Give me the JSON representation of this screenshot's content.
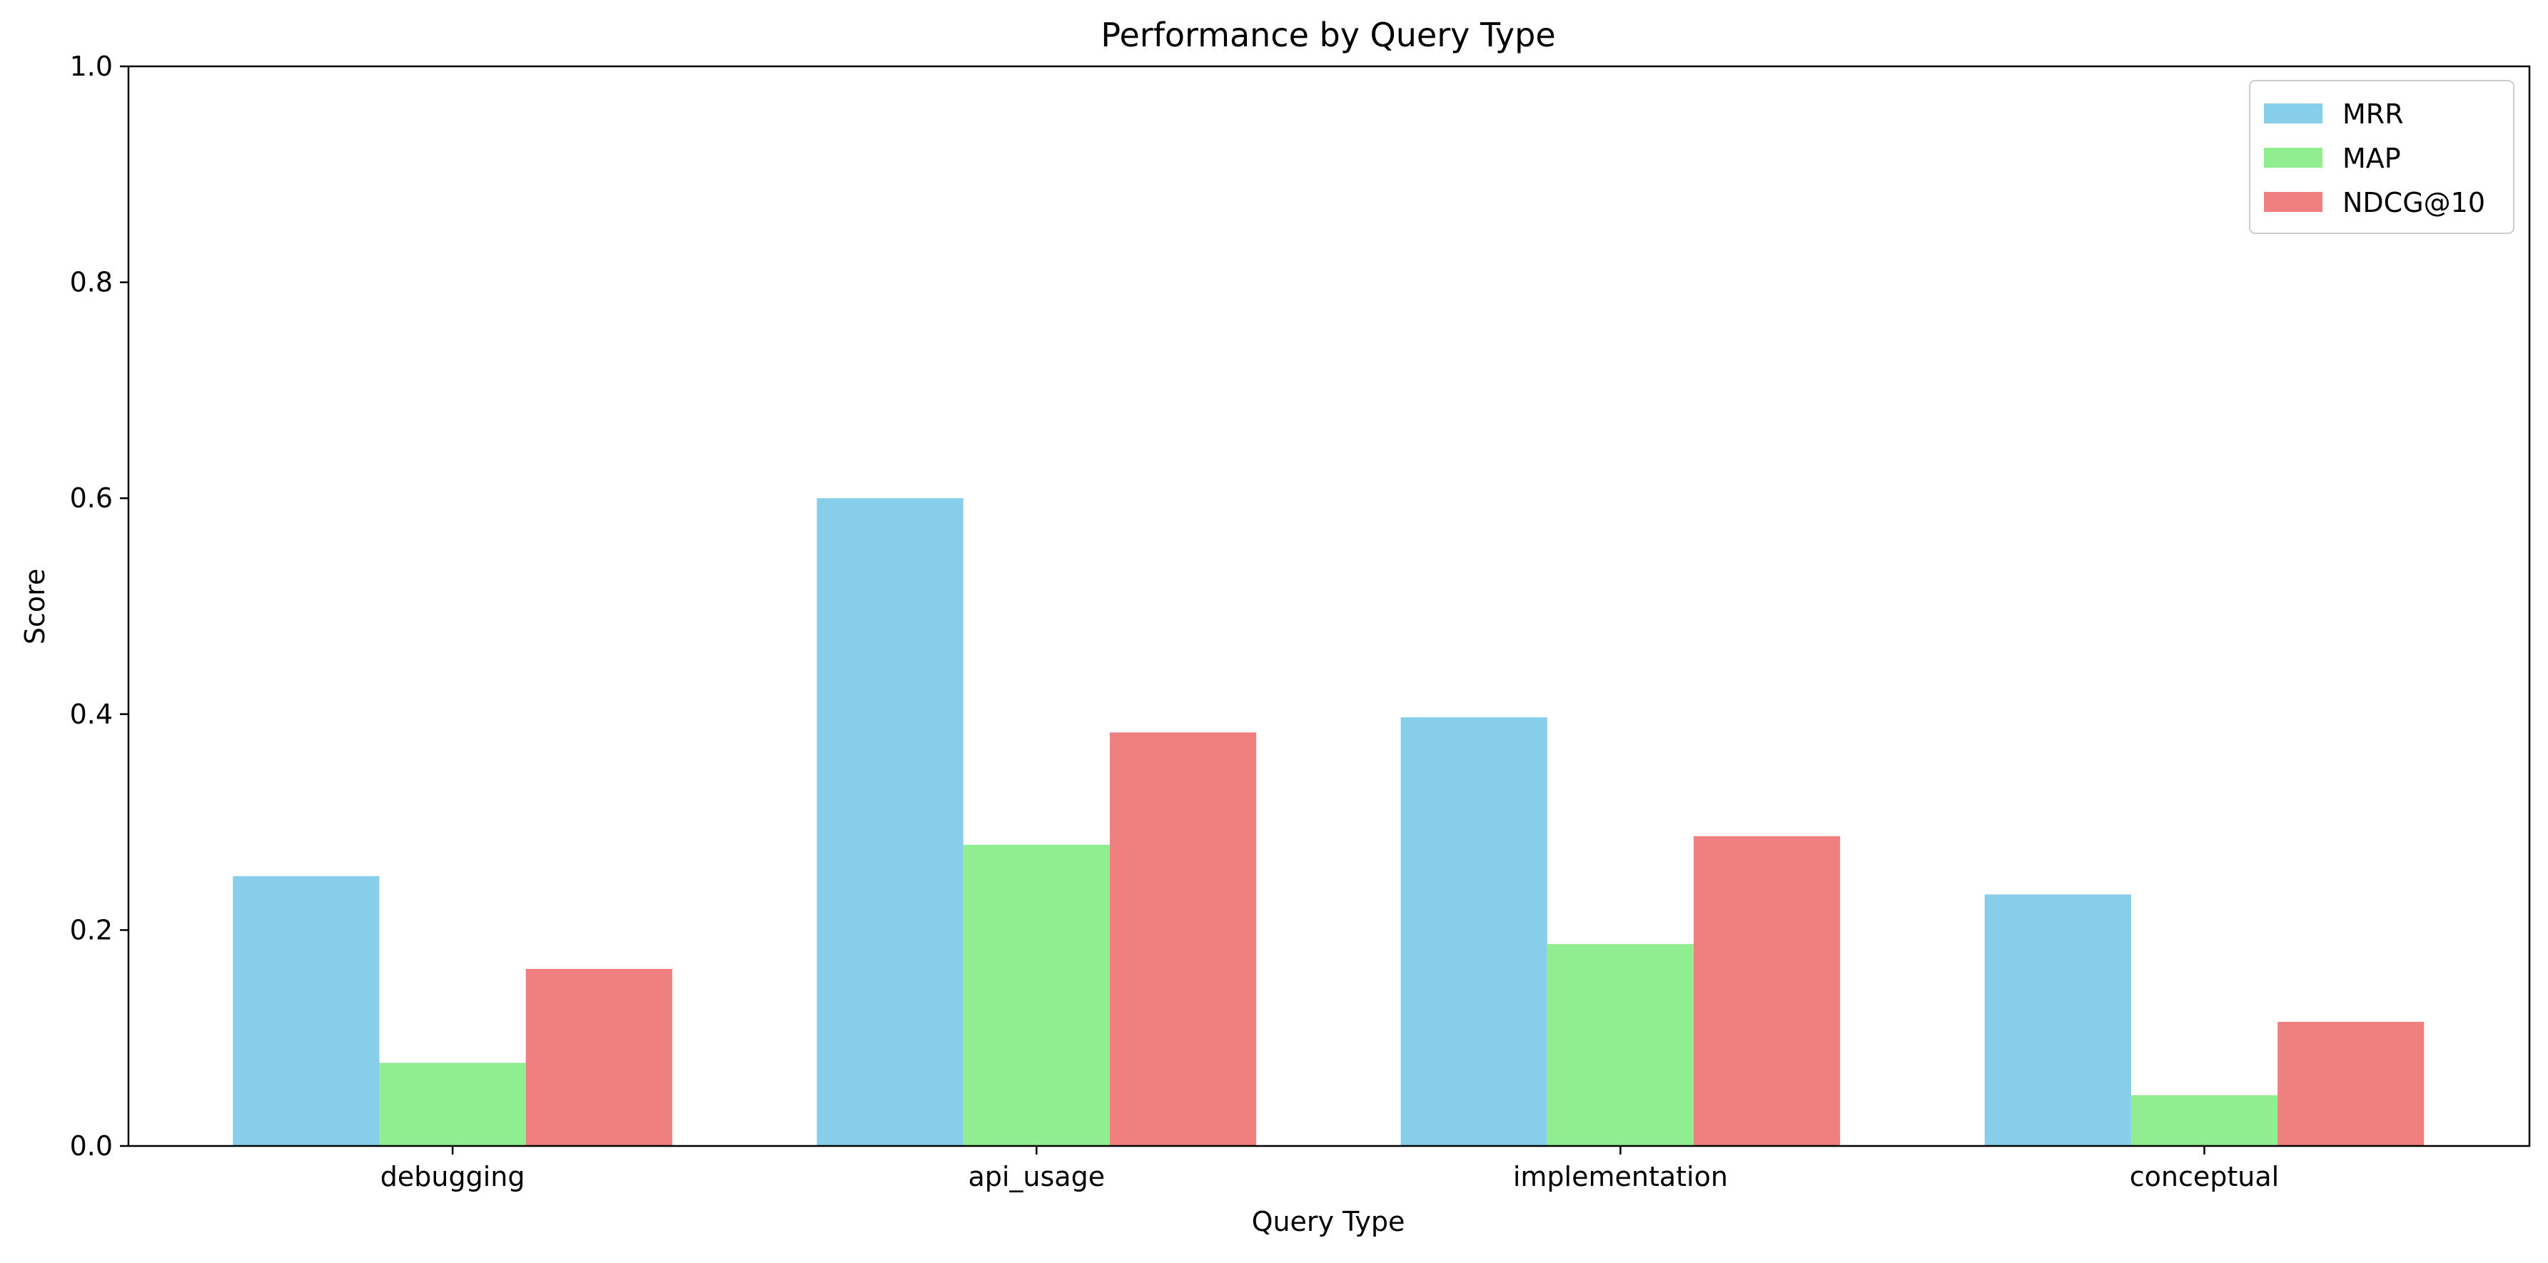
{
  "chart_data": {
    "type": "bar",
    "title": "Performance by Query Type",
    "xlabel": "Query Type",
    "ylabel": "Score",
    "ylim": [
      0,
      1.0
    ],
    "yticks": [
      "0.0",
      "0.2",
      "0.4",
      "0.6",
      "0.8",
      "1.0"
    ],
    "categories": [
      "debugging",
      "api_usage",
      "implementation",
      "conceptual"
    ],
    "series": [
      {
        "name": "MRR",
        "color": "#87CEEB",
        "values": [
          0.25,
          0.6,
          0.397,
          0.233
        ]
      },
      {
        "name": "MAP",
        "color": "#90EE90",
        "values": [
          0.077,
          0.279,
          0.187,
          0.047
        ]
      },
      {
        "name": "NDCG@10",
        "color": "#F08080",
        "values": [
          0.164,
          0.383,
          0.287,
          0.115
        ]
      }
    ],
    "legend": "top-right",
    "grid": false
  }
}
